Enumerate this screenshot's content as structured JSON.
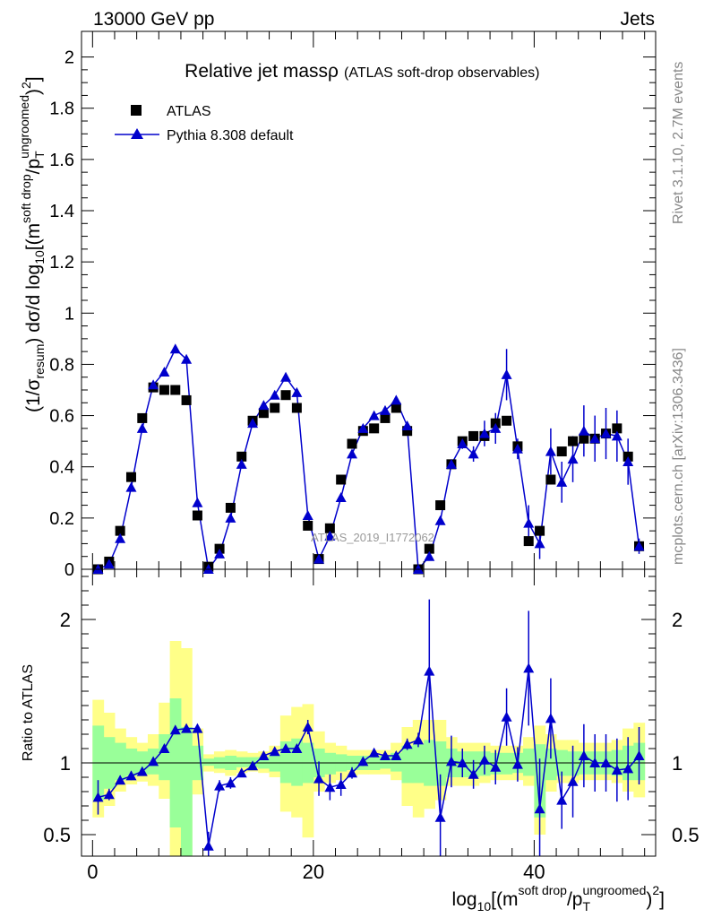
{
  "header": {
    "energy_label": "13000 GeV pp",
    "process_label": "Jets",
    "rivet_label": "Rivet 3.1.10,  2.7M events",
    "mcplots_label": "mcplots.cern.ch [arXiv:1306.3436]",
    "watermark": "ATLAS_2019_I1772062"
  },
  "chart_data": [
    {
      "type": "scatter",
      "panel": "main",
      "title": "Relative jet massρ",
      "subtitle": "(ATLAS soft-drop observables)",
      "ylabel": "(1/σresum) dσ/d log10[(m soft drop/pT ungroomed)2]",
      "xlim": [
        -1,
        51
      ],
      "ylim": [
        0,
        2.1
      ],
      "x_ticks": [
        0,
        20,
        40
      ],
      "y_ticks": [
        0,
        0.2,
        0.4,
        0.6,
        0.8,
        1,
        1.2,
        1.4,
        1.6,
        1.8,
        2
      ],
      "y_tick_labels": [
        "0",
        "0.2",
        "0.4",
        "0.6",
        "0.8",
        "1",
        "1.2",
        "1.4",
        "1.6",
        "1.8",
        "2"
      ],
      "legend": {
        "placement": "top-left"
      },
      "x": [
        0.5,
        1.5,
        2.5,
        3.5,
        4.5,
        5.5,
        6.5,
        7.5,
        8.5,
        9.5,
        10.5,
        11.5,
        12.5,
        13.5,
        14.5,
        15.5,
        16.5,
        17.5,
        18.5,
        19.5,
        20.5,
        21.5,
        22.5,
        23.5,
        24.5,
        25.5,
        26.5,
        27.5,
        28.5,
        29.5,
        30.5,
        31.5,
        32.5,
        33.5,
        34.5,
        35.5,
        36.5,
        37.5,
        38.5,
        39.5,
        40.5,
        41.5,
        42.5,
        43.5,
        44.5,
        45.5,
        46.5,
        47.5,
        48.5,
        49.5
      ],
      "series": [
        {
          "name": "ATLAS",
          "color": "#000000",
          "marker": "square",
          "values": [
            0.0,
            0.03,
            0.15,
            0.36,
            0.59,
            0.71,
            0.7,
            0.7,
            0.66,
            0.21,
            0.01,
            0.08,
            0.24,
            0.44,
            0.58,
            0.61,
            0.63,
            0.68,
            0.63,
            0.17,
            0.04,
            0.16,
            0.35,
            0.49,
            0.54,
            0.55,
            0.59,
            0.63,
            0.54,
            0.0,
            0.08,
            0.25,
            0.41,
            0.5,
            0.52,
            0.52,
            0.57,
            0.58,
            0.48,
            0.11,
            0.15,
            0.35,
            0.46,
            0.5,
            0.51,
            0.51,
            0.53,
            0.55,
            0.44,
            0.09
          ]
        },
        {
          "name": "Pythia 8.308 default",
          "color": "#0000cc",
          "marker": "triangle",
          "values": [
            0.0,
            0.02,
            0.12,
            0.32,
            0.55,
            0.72,
            0.77,
            0.86,
            0.82,
            0.26,
            0.0,
            0.06,
            0.2,
            0.41,
            0.57,
            0.64,
            0.68,
            0.75,
            0.69,
            0.21,
            0.04,
            0.13,
            0.28,
            0.45,
            0.55,
            0.6,
            0.62,
            0.66,
            0.56,
            0.0,
            0.05,
            0.19,
            0.41,
            0.49,
            0.45,
            0.53,
            0.55,
            0.76,
            0.47,
            0.18,
            0.1,
            0.46,
            0.34,
            0.43,
            0.54,
            0.51,
            0.53,
            0.52,
            0.42,
            0.09
          ],
          "errors": [
            0,
            0,
            0,
            0,
            0,
            0,
            0,
            0,
            0,
            0,
            0,
            0,
            0,
            0,
            0,
            0,
            0,
            0,
            0,
            0,
            0,
            0,
            0,
            0,
            0,
            0,
            0,
            0,
            0,
            0,
            0,
            0,
            0,
            0.02,
            0.03,
            0.05,
            0.06,
            0.1,
            0.04,
            0.07,
            0.06,
            0.09,
            0.08,
            0.09,
            0.1,
            0.09,
            0.1,
            0.1,
            0.09,
            0.03
          ]
        }
      ]
    },
    {
      "type": "line",
      "panel": "ratio",
      "ylabel": "Ratio to ATLAS",
      "xlabel": "log10[(m soft drop/pT ungroomed)2]",
      "xlim": [
        -1,
        51
      ],
      "ylim": [
        0.35,
        2.35
      ],
      "x_ticks": [
        0,
        20,
        40
      ],
      "x_tick_labels": [
        "0",
        "20",
        "40"
      ],
      "y_ticks": [
        0.5,
        1,
        2
      ],
      "y_tick_labels": [
        "0.5",
        "1",
        "2"
      ],
      "reference_line": 1,
      "x": [
        0.5,
        1.5,
        2.5,
        3.5,
        4.5,
        5.5,
        6.5,
        7.5,
        8.5,
        9.5,
        10.5,
        11.5,
        12.5,
        13.5,
        14.5,
        15.5,
        16.5,
        17.5,
        18.5,
        19.5,
        20.5,
        21.5,
        22.5,
        23.5,
        24.5,
        25.5,
        26.5,
        27.5,
        28.5,
        29.5,
        30.5,
        31.5,
        32.5,
        33.5,
        34.5,
        35.5,
        36.5,
        37.5,
        38.5,
        39.5,
        40.5,
        41.5,
        42.5,
        43.5,
        44.5,
        45.5,
        46.5,
        47.5,
        48.5,
        49.5
      ],
      "bands": {
        "green_color": "#99ff99",
        "yellow_color": "#ffff88",
        "green_lo": [
          0.74,
          0.82,
          0.88,
          0.91,
          0.92,
          0.92,
          0.88,
          0.55,
          0.35,
          0.88,
          0.98,
          0.96,
          0.95,
          0.97,
          0.97,
          0.96,
          0.94,
          0.86,
          0.84,
          0.86,
          0.9,
          0.92,
          0.94,
          0.95,
          0.95,
          0.95,
          0.96,
          0.94,
          0.86,
          0.86,
          0.84,
          0.84,
          0.9,
          0.9,
          0.9,
          0.91,
          0.92,
          0.92,
          0.93,
          0.91,
          0.62,
          0.88,
          0.91,
          0.91,
          0.92,
          0.92,
          0.92,
          0.91,
          0.88,
          0.88
        ],
        "green_hi": [
          1.26,
          1.18,
          1.14,
          1.1,
          1.08,
          1.1,
          1.2,
          1.45,
          1.25,
          1.12,
          1.03,
          1.04,
          1.05,
          1.04,
          1.04,
          1.04,
          1.06,
          1.15,
          1.17,
          1.14,
          1.1,
          1.07,
          1.06,
          1.05,
          1.05,
          1.05,
          1.05,
          1.07,
          1.12,
          1.13,
          1.16,
          1.15,
          1.1,
          1.08,
          1.08,
          1.08,
          1.07,
          1.07,
          1.07,
          1.1,
          1.13,
          1.1,
          1.09,
          1.08,
          1.08,
          1.08,
          1.08,
          1.09,
          1.12,
          1.14
        ],
        "yellow_lo": [
          0.62,
          0.7,
          0.8,
          0.85,
          0.87,
          0.84,
          0.75,
          0.33,
          0.33,
          0.78,
          0.94,
          0.93,
          0.91,
          0.93,
          0.94,
          0.93,
          0.9,
          0.66,
          0.62,
          0.48,
          0.8,
          0.86,
          0.88,
          0.91,
          0.92,
          0.92,
          0.92,
          0.88,
          0.7,
          0.62,
          0.68,
          0.74,
          0.84,
          0.84,
          0.84,
          0.86,
          0.88,
          0.88,
          0.88,
          0.84,
          0.5,
          0.8,
          0.86,
          0.86,
          0.88,
          0.88,
          0.88,
          0.86,
          0.8,
          0.76
        ],
        "yellow_hi": [
          1.44,
          1.35,
          1.24,
          1.18,
          1.14,
          1.2,
          1.42,
          1.85,
          1.8,
          1.24,
          1.06,
          1.08,
          1.09,
          1.08,
          1.07,
          1.08,
          1.12,
          1.33,
          1.39,
          1.41,
          1.22,
          1.14,
          1.12,
          1.09,
          1.09,
          1.09,
          1.09,
          1.14,
          1.25,
          1.3,
          1.3,
          1.3,
          1.18,
          1.14,
          1.14,
          1.14,
          1.12,
          1.12,
          1.12,
          1.18,
          1.26,
          1.2,
          1.16,
          1.16,
          1.14,
          1.14,
          1.14,
          1.16,
          1.24,
          1.28
        ]
      },
      "series": [
        {
          "name": "Pythia 8.308 default",
          "color": "#0000cc",
          "values": [
            0.76,
            0.78,
            0.88,
            0.91,
            0.94,
            1.01,
            1.1,
            1.23,
            1.24,
            1.24,
            0.42,
            0.84,
            0.86,
            0.93,
            0.98,
            1.05,
            1.08,
            1.1,
            1.1,
            1.25,
            0.89,
            0.83,
            0.85,
            0.93,
            1.01,
            1.07,
            1.05,
            1.05,
            1.13,
            1.16,
            1.64,
            0.62,
            1.01,
            1.0,
            0.92,
            1.02,
            0.97,
            1.32,
            0.99,
            1.66,
            0.68,
            1.31,
            0.74,
            0.87,
            1.05,
            1.0,
            1.0,
            0.95,
            0.96,
            1.05
          ],
          "errors": [
            0.12,
            0.04,
            0.03,
            0.03,
            0.02,
            0.02,
            0.02,
            0.02,
            0.02,
            0.02,
            0.1,
            0.04,
            0.04,
            0.03,
            0.02,
            0.02,
            0.02,
            0.02,
            0.02,
            0.05,
            0.12,
            0.09,
            0.08,
            0.04,
            0.03,
            0.03,
            0.03,
            0.03,
            0.04,
            0.05,
            0.5,
            0.3,
            0.18,
            0.1,
            0.1,
            0.1,
            0.12,
            0.2,
            0.12,
            0.4,
            0.35,
            0.28,
            0.2,
            0.25,
            0.22,
            0.2,
            0.2,
            0.22,
            0.22,
            0.2
          ]
        }
      ]
    }
  ]
}
